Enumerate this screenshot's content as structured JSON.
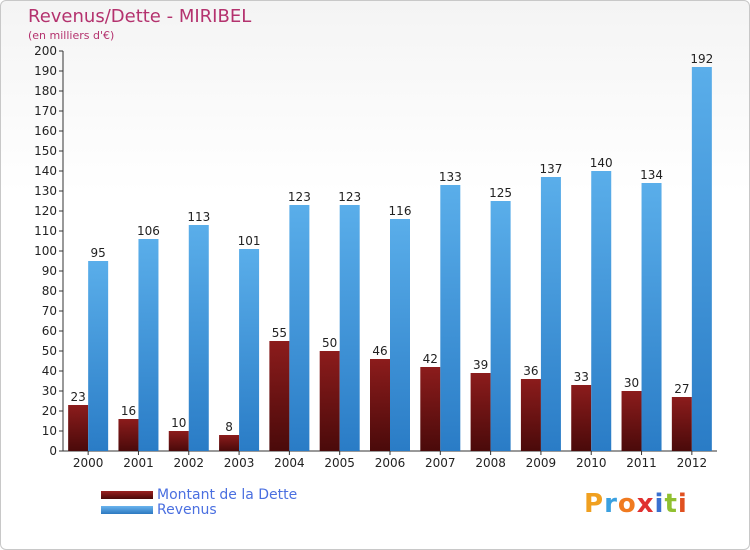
{
  "header": {
    "title": "Revenus/Dette - MIRIBEL",
    "subtitle": "(en milliers d'€)"
  },
  "legend": {
    "items": [
      {
        "label": "Montant de la Dette",
        "color": "#7a1414"
      },
      {
        "label": "Revenus",
        "color": "#4aa0e0"
      }
    ]
  },
  "logo": {
    "text": "Proxiti"
  },
  "chart_data": {
    "type": "bar",
    "title": "Revenus/Dette - MIRIBEL",
    "subtitle": "(en milliers d'€)",
    "categories": [
      "2000",
      "2001",
      "2002",
      "2003",
      "2004",
      "2005",
      "2006",
      "2007",
      "2008",
      "2009",
      "2010",
      "2011",
      "2012"
    ],
    "series": [
      {
        "name": "Montant de la Dette",
        "color": "#7a1414",
        "values": [
          23,
          16,
          10,
          8,
          55,
          50,
          46,
          42,
          39,
          36,
          33,
          30,
          27
        ]
      },
      {
        "name": "Revenus",
        "color": "#4aa0e0",
        "values": [
          95,
          106,
          113,
          101,
          123,
          123,
          116,
          133,
          125,
          137,
          140,
          134,
          192
        ]
      }
    ],
    "ylim": [
      0,
      200
    ],
    "ytick_step": 10,
    "grid": false,
    "legend_position": "bottom-left"
  }
}
